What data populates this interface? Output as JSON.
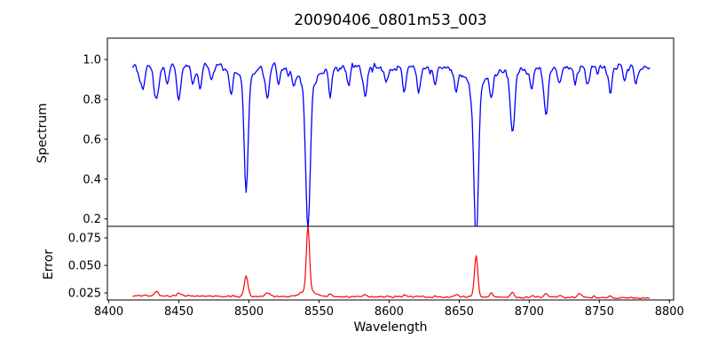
{
  "figure": {
    "title": "20090406_0801m53_003",
    "background_color": "#ffffff",
    "text_color": "#000000",
    "frame_color": "#000000"
  },
  "chart_data": [
    {
      "type": "line",
      "subplot": "spectrum",
      "title": "20090406_0801m53_003",
      "xlabel": "Wavelength",
      "ylabel": "Spectrum",
      "legend": "none",
      "grid": false,
      "line_color": "#0000ff",
      "xlim": [
        8399,
        8803
      ],
      "ylim": [
        0.163,
        1.107
      ],
      "x_ticks": [
        8400,
        8450,
        8500,
        8550,
        8600,
        8650,
        8700,
        8750,
        8800
      ],
      "x_tick_labels": [
        "8400",
        "8450",
        "8500",
        "8550",
        "8600",
        "8650",
        "8700",
        "8750",
        "8800"
      ],
      "y_ticks": [
        0.2,
        0.4,
        0.6,
        0.8,
        1.0
      ],
      "y_tick_labels": [
        "0.2",
        "0.4",
        "0.6",
        "0.8",
        "1.0"
      ],
      "data_x_range": [
        8417,
        8786
      ],
      "sample_step": 0.75,
      "seed": 7,
      "continuum_level": 0.963,
      "noise_sigma": 0.011,
      "downward_noise": 0.024,
      "major_absorption_lines": [
        {
          "center": 8498.0,
          "bottom_value": 0.39,
          "depth": 0.575,
          "width": 1.4,
          "wings": true
        },
        {
          "center": 8542.1,
          "bottom_value": 0.22,
          "depth": 0.745,
          "width": 1.6,
          "wings": true
        },
        {
          "center": 8662.1,
          "bottom_value": 0.18,
          "depth": 0.785,
          "width": 1.6,
          "wings": true
        }
      ],
      "minor_absorption_lines": [
        {
          "center": 8424,
          "depth": 0.1,
          "width": 1.3
        },
        {
          "center": 8434,
          "depth": 0.17,
          "width": 1.6
        },
        {
          "center": 8442,
          "depth": 0.08,
          "width": 1.2
        },
        {
          "center": 8450,
          "depth": 0.18,
          "width": 1.4
        },
        {
          "center": 8460,
          "depth": 0.1,
          "width": 1.2
        },
        {
          "center": 8465,
          "depth": 0.12,
          "width": 1.2
        },
        {
          "center": 8473,
          "depth": 0.08,
          "width": 1.1
        },
        {
          "center": 8487,
          "depth": 0.13,
          "width": 1.2
        },
        {
          "center": 8513,
          "depth": 0.16,
          "width": 1.4
        },
        {
          "center": 8521,
          "depth": 0.09,
          "width": 1.1
        },
        {
          "center": 8532,
          "depth": 0.08,
          "width": 1.1
        },
        {
          "center": 8558,
          "depth": 0.11,
          "width": 1.2
        },
        {
          "center": 8571,
          "depth": 0.09,
          "width": 1.1
        },
        {
          "center": 8583,
          "depth": 0.15,
          "width": 1.4
        },
        {
          "center": 8598,
          "depth": 0.08,
          "width": 1.1
        },
        {
          "center": 8611,
          "depth": 0.12,
          "width": 1.2
        },
        {
          "center": 8621,
          "depth": 0.1,
          "width": 1.1
        },
        {
          "center": 8633,
          "depth": 0.08,
          "width": 1.1
        },
        {
          "center": 8648,
          "depth": 0.1,
          "width": 1.1
        },
        {
          "center": 8673,
          "depth": 0.13,
          "width": 1.2
        },
        {
          "center": 8688,
          "depth": 0.3,
          "width": 1.6
        },
        {
          "center": 8702,
          "depth": 0.09,
          "width": 1.1
        },
        {
          "center": 8712,
          "depth": 0.24,
          "width": 1.5
        },
        {
          "center": 8722,
          "depth": 0.08,
          "width": 1.1
        },
        {
          "center": 8733,
          "depth": 0.09,
          "width": 1.1
        },
        {
          "center": 8742,
          "depth": 0.08,
          "width": 1.1
        },
        {
          "center": 8758,
          "depth": 0.11,
          "width": 1.2
        },
        {
          "center": 8768,
          "depth": 0.07,
          "width": 1.0
        },
        {
          "center": 8776,
          "depth": 0.1,
          "width": 1.1
        }
      ]
    },
    {
      "type": "line",
      "subplot": "error",
      "xlabel": "Wavelength",
      "ylabel": "Error",
      "legend": "none",
      "grid": false,
      "line_color": "#ff0000",
      "xlim": [
        8399,
        8803
      ],
      "ylim": [
        0.0186,
        0.0855
      ],
      "y_ticks": [
        0.025,
        0.05,
        0.075
      ],
      "y_tick_labels": [
        "0.025",
        "0.050",
        "0.075"
      ],
      "data_x_range": [
        8417,
        8786
      ],
      "baseline_left": 0.0222,
      "baseline_right": 0.0205,
      "noise_sigma": 0.0005,
      "upward_noise": 0.0008,
      "peaks": [
        {
          "center": 8498.0,
          "top_value": 0.04,
          "height": 0.0185,
          "width": 1.3
        },
        {
          "center": 8542.1,
          "top_value": 0.08,
          "height": 0.0585,
          "width": 1.1,
          "wings": true
        },
        {
          "center": 8662.1,
          "top_value": 0.059,
          "height": 0.0375,
          "width": 1.2
        },
        {
          "center": 8434,
          "height": 0.004,
          "width": 1.4
        },
        {
          "center": 8450,
          "height": 0.003,
          "width": 1.3
        },
        {
          "center": 8513,
          "height": 0.003,
          "width": 1.3
        },
        {
          "center": 8558,
          "height": 0.0025,
          "width": 1.2
        },
        {
          "center": 8583,
          "height": 0.002,
          "width": 1.2
        },
        {
          "center": 8611,
          "height": 0.002,
          "width": 1.2
        },
        {
          "center": 8648,
          "height": 0.002,
          "width": 1.2
        },
        {
          "center": 8673,
          "height": 0.004,
          "width": 1.2
        },
        {
          "center": 8688,
          "height": 0.0045,
          "width": 1.3
        },
        {
          "center": 8702,
          "height": 0.002,
          "width": 1.2
        },
        {
          "center": 8712,
          "height": 0.0035,
          "width": 1.3
        },
        {
          "center": 8722,
          "height": 0.002,
          "width": 1.2
        },
        {
          "center": 8736,
          "height": 0.003,
          "width": 1.3
        },
        {
          "center": 8758,
          "height": 0.002,
          "width": 1.2
        }
      ]
    }
  ]
}
